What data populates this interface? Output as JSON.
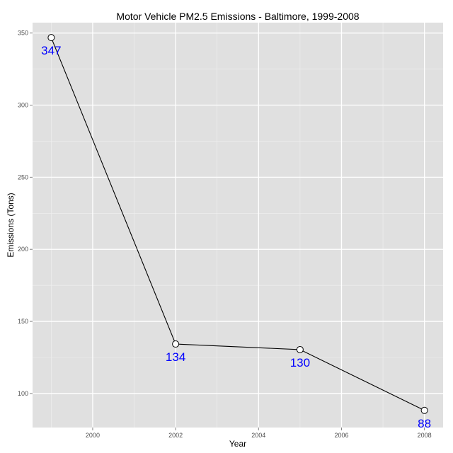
{
  "chart_data": {
    "type": "line",
    "title": "Motor Vehicle PM2.5 Emissions - Baltimore, 1999-2008",
    "xlabel": "Year",
    "ylabel": "Emissions (Tons)",
    "x": [
      1999,
      2002,
      2005,
      2008
    ],
    "y": [
      346.82,
      134.31,
      130.43,
      88.28
    ],
    "data_labels": [
      "347",
      "134",
      "130",
      "88"
    ],
    "xlim": [
      1998.55,
      2008.45
    ],
    "ylim": [
      76.4,
      357.2
    ],
    "x_ticks": [
      2000,
      2002,
      2004,
      2006,
      2008
    ],
    "x_tick_labels": [
      "2000",
      "2002",
      "2004",
      "2006",
      "2008"
    ],
    "y_ticks": [
      100,
      150,
      200,
      250,
      300,
      350
    ],
    "y_tick_labels": [
      "100",
      "150",
      "200",
      "250",
      "300",
      "350"
    ],
    "grid": true,
    "legend": "none",
    "colors": {
      "panel": "#e0e0e0",
      "grid_major": "#ffffff",
      "grid_minor": "#f0f0f0",
      "line": "#000000",
      "point_fill": "#ffffff",
      "data_label": "#0000ff",
      "tick_text": "#4d4d4d"
    }
  }
}
